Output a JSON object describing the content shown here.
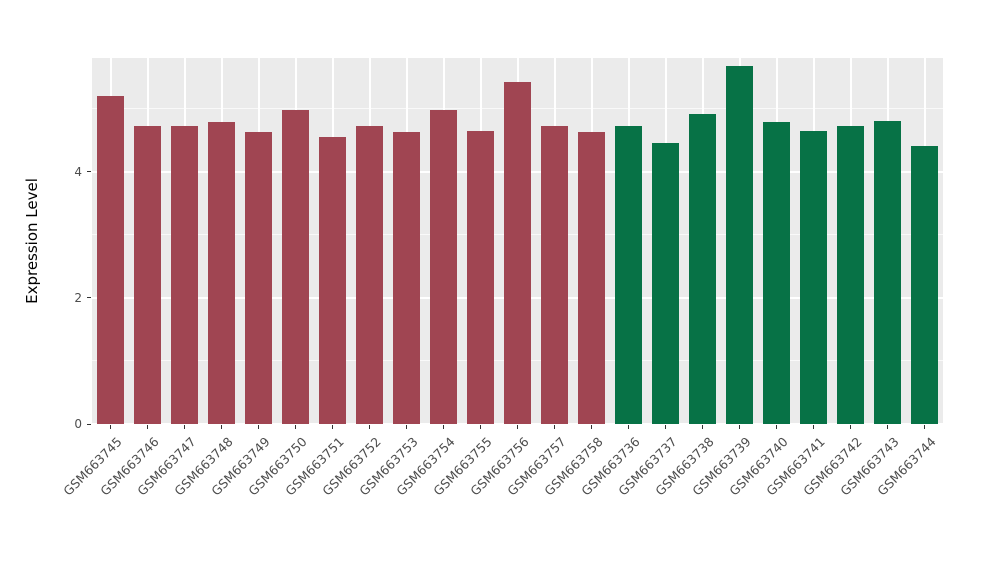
{
  "chart_data": {
    "type": "bar",
    "title": "",
    "xlabel": "",
    "ylabel": "Expression Level",
    "ylim": [
      0,
      5.8
    ],
    "yticks_major": [
      0,
      2,
      4
    ],
    "yticks_minor": [
      1,
      3,
      5
    ],
    "grid": true,
    "legend": "none",
    "panel_bg": "#EBEBEB",
    "grid_color": "#FFFFFF",
    "axis_text_color": "#4D4D4D",
    "categories": [
      "GSM663745",
      "GSM663746",
      "GSM663747",
      "GSM663748",
      "GSM663749",
      "GSM663750",
      "GSM663751",
      "GSM663752",
      "GSM663753",
      "GSM663754",
      "GSM663755",
      "GSM663756",
      "GSM663757",
      "GSM663758",
      "GSM663736",
      "GSM663737",
      "GSM663738",
      "GSM663739",
      "GSM663740",
      "GSM663741",
      "GSM663742",
      "GSM663743",
      "GSM663744"
    ],
    "values": [
      5.2,
      4.72,
      4.73,
      4.78,
      4.62,
      4.97,
      4.55,
      4.73,
      4.62,
      4.97,
      4.65,
      5.42,
      4.73,
      4.62,
      4.73,
      4.45,
      4.92,
      5.68,
      4.78,
      4.65,
      4.73,
      4.8,
      4.4
    ],
    "group_split_index": 14,
    "group_colors": {
      "group1": "#A04552",
      "group2": "#077246"
    }
  }
}
